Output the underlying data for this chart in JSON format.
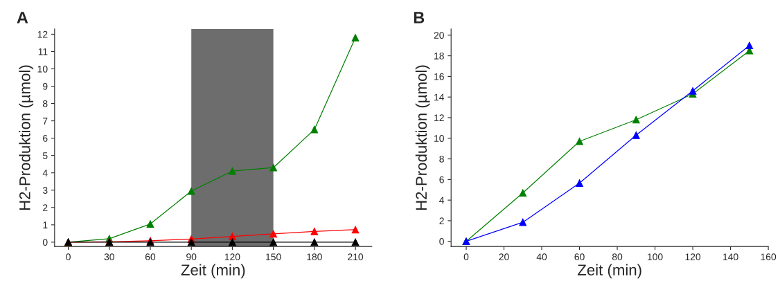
{
  "chart_data": [
    {
      "type": "line",
      "title": "A",
      "xlabel": "Zeit (min)",
      "ylabel": "H2-Produktion (µmol)",
      "x": [
        0,
        30,
        60,
        90,
        120,
        150,
        180,
        210
      ],
      "series": [
        {
          "color": "#008000",
          "values": [
            0,
            0.2,
            1.05,
            2.95,
            4.1,
            4.3,
            6.5,
            11.8
          ]
        },
        {
          "color": "#ff0000",
          "values": [
            0,
            0.02,
            0.08,
            0.18,
            0.33,
            0.48,
            0.62,
            0.72
          ]
        },
        {
          "color": "#000000",
          "values": [
            0,
            0,
            0,
            0,
            0,
            0,
            0,
            0
          ]
        }
      ],
      "xlim": [
        -10,
        222
      ],
      "xticks": [
        0,
        30,
        60,
        90,
        120,
        150,
        180,
        210
      ],
      "ylim": [
        -0.25,
        12.3
      ],
      "yticks": [
        0,
        1,
        2,
        3,
        4,
        5,
        6,
        7,
        8,
        9,
        10,
        11,
        12
      ],
      "bands": [
        {
          "axis": "x",
          "from": 90,
          "to": 150,
          "color": "#6d6d6d"
        }
      ],
      "marker": "triangle",
      "grid": false
    },
    {
      "type": "line",
      "title": "B",
      "xlabel": "Zeit (min)",
      "ylabel": "H2-Produktion (µmol)",
      "x": [
        0,
        30,
        60,
        90,
        120,
        150
      ],
      "series": [
        {
          "color": "#008000",
          "values": [
            0,
            4.7,
            9.7,
            11.8,
            14.3,
            18.5
          ]
        },
        {
          "color": "#0000ff",
          "values": [
            0,
            1.85,
            5.65,
            10.3,
            14.6,
            19.0
          ]
        }
      ],
      "xlim": [
        -8,
        160
      ],
      "xticks": [
        0,
        20,
        40,
        60,
        80,
        100,
        120,
        140,
        160
      ],
      "ylim": [
        -0.5,
        20.6
      ],
      "yticks": [
        0,
        2,
        4,
        6,
        8,
        10,
        12,
        14,
        16,
        18,
        20
      ],
      "marker": "triangle",
      "grid": false
    }
  ]
}
